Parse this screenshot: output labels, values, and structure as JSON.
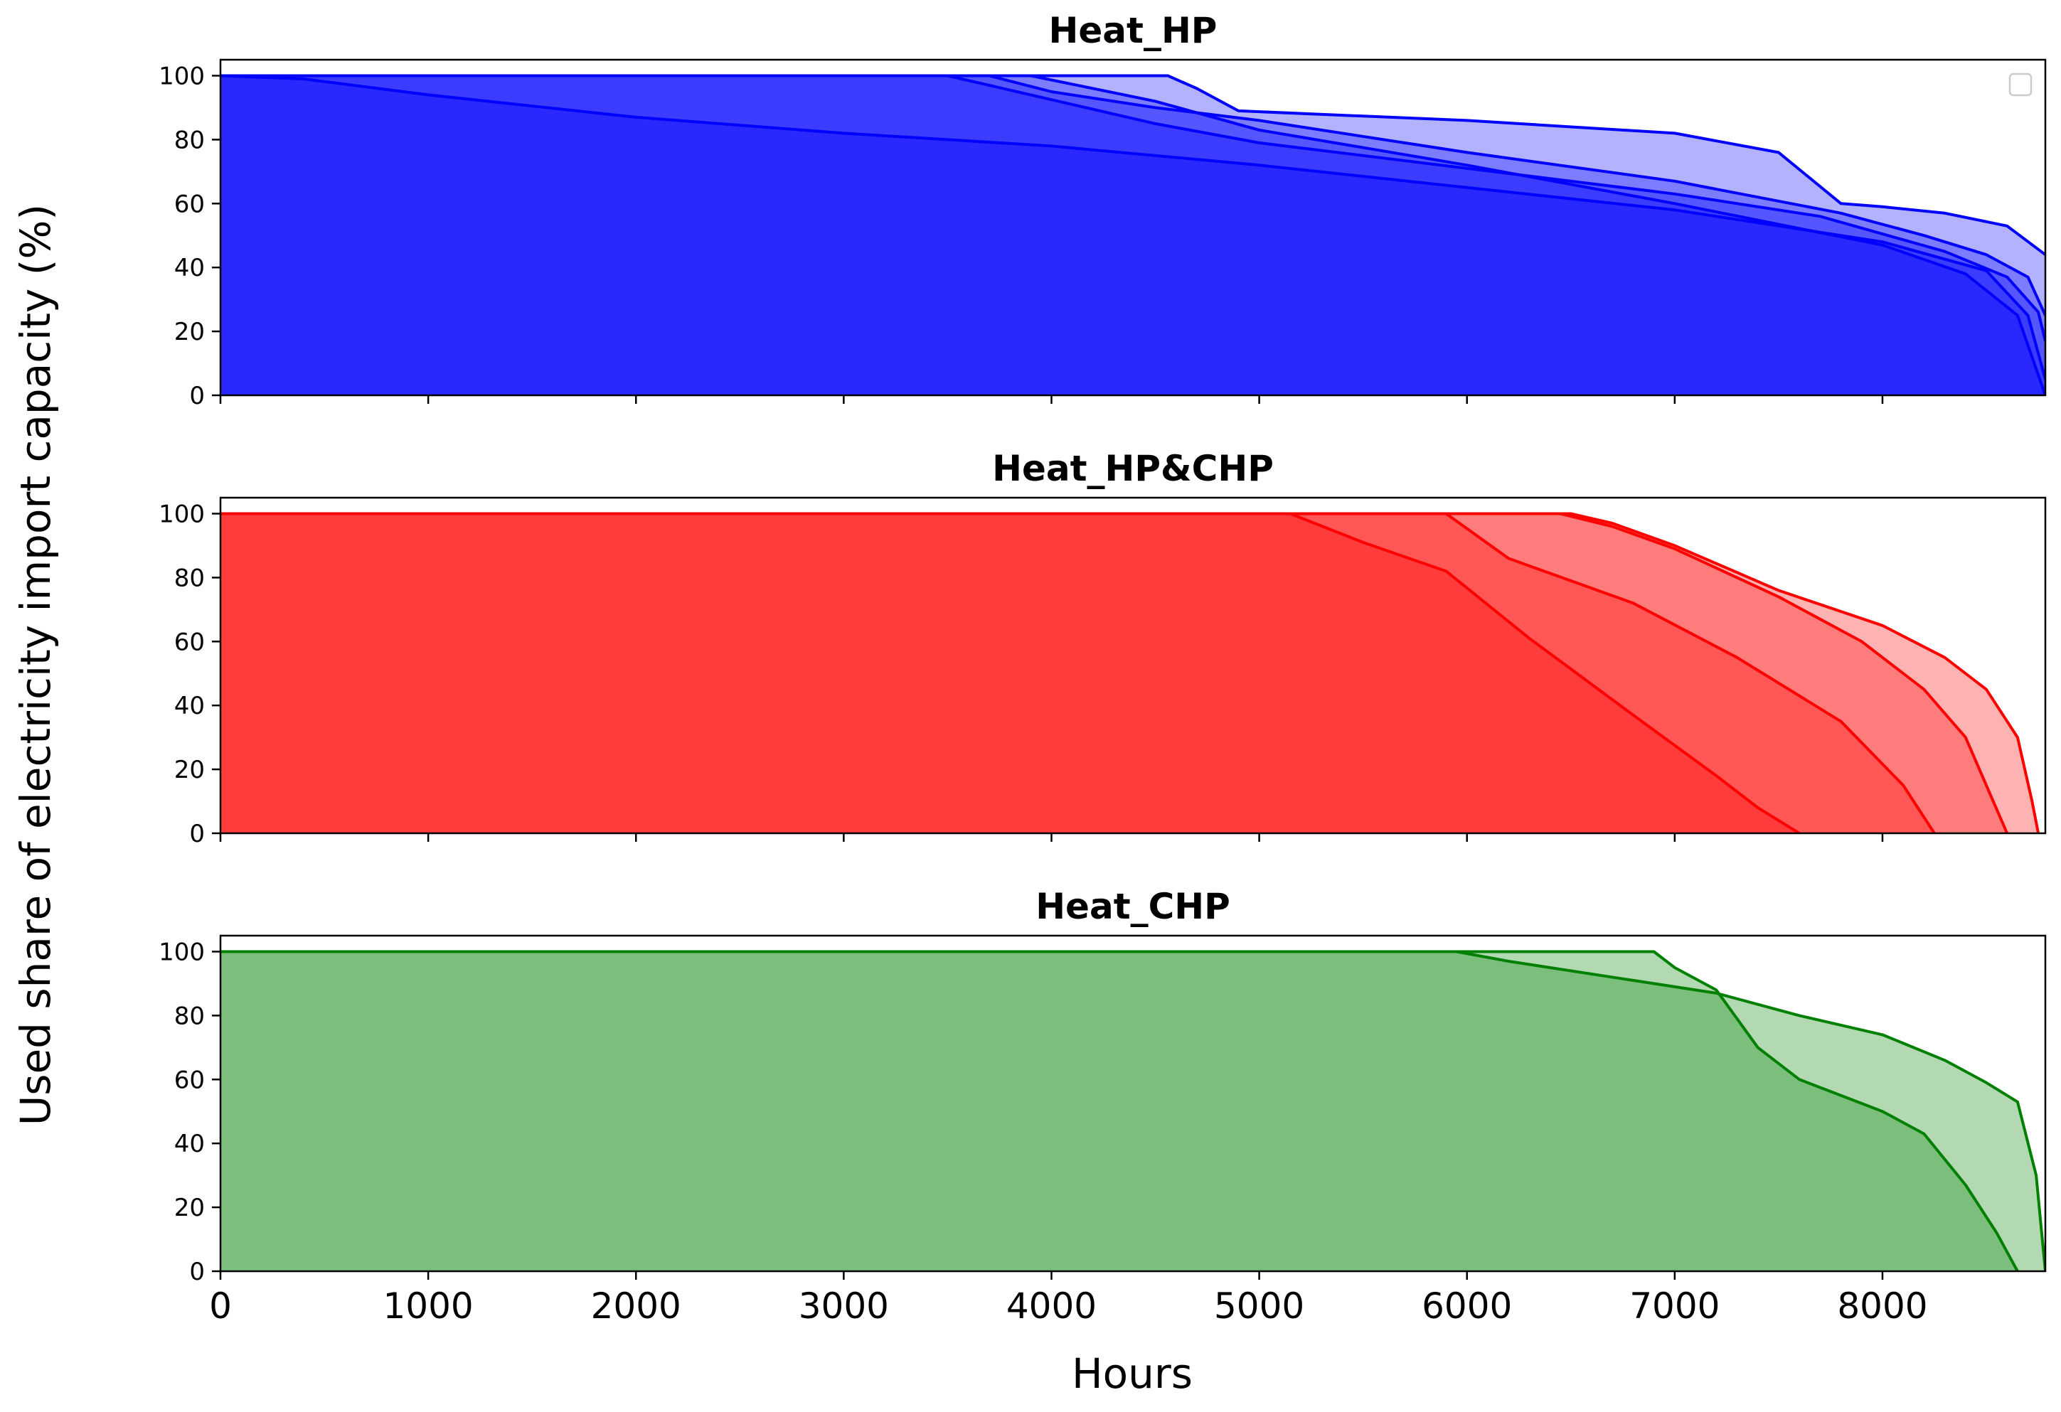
{
  "figure": {
    "ylabel": "Used share of electricity import capacity (%)",
    "xlabel": "Hours"
  },
  "chart_data": [
    {
      "type": "area",
      "title": "Heat_HP",
      "xlabel": "Hours",
      "ylabel": "Used share of electricity import capacity (%)",
      "xlim": [
        0,
        8784
      ],
      "ylim": [
        0,
        105
      ],
      "xticks": [
        0,
        1000,
        2000,
        3000,
        4000,
        5000,
        6000,
        7000,
        8000
      ],
      "yticks": [
        0,
        20,
        40,
        60,
        80,
        100
      ],
      "show_xtick_labels": false,
      "grid": false,
      "legend": "top-right (empty)",
      "color": "#0000ff",
      "fill_opacity": 0.3,
      "series": [
        {
          "x": [
            0,
            3800,
            4300,
            4560,
            4700,
            4900,
            6000,
            7000,
            7500,
            7800,
            8000,
            8300,
            8600,
            8784
          ],
          "y": [
            100,
            100,
            100,
            100,
            96,
            89,
            86,
            82,
            76,
            60,
            59,
            57,
            53,
            44
          ]
        },
        {
          "x": [
            0,
            3700,
            4000,
            4500,
            5000,
            6000,
            7000,
            7800,
            8200,
            8500,
            8700,
            8784
          ],
          "y": [
            100,
            100,
            95,
            90,
            86,
            76,
            67,
            57,
            50,
            44,
            37,
            25
          ]
        },
        {
          "x": [
            0,
            3500,
            3900,
            4500,
            5000,
            6000,
            7000,
            7700,
            8300,
            8600,
            8750,
            8784
          ],
          "y": [
            100,
            100,
            94,
            85,
            79,
            71,
            63,
            56,
            45,
            37,
            26,
            17
          ]
        },
        {
          "x": [
            0,
            400,
            1000,
            2000,
            3000,
            4000,
            5000,
            6000,
            7000,
            8000,
            8500,
            8700,
            8784
          ],
          "y": [
            100,
            99,
            94,
            87,
            82,
            78,
            72,
            65,
            58,
            48,
            39,
            25,
            5
          ]
        },
        {
          "x": [
            0,
            3000,
            3900,
            4500,
            5000,
            6000,
            7000,
            8000,
            8400,
            8650,
            8784
          ],
          "y": [
            100,
            100,
            100,
            92,
            83,
            72,
            60,
            47,
            38,
            25,
            0
          ]
        }
      ]
    },
    {
      "type": "area",
      "title": "Heat_HP&CHP",
      "xlim": [
        0,
        8784
      ],
      "ylim": [
        0,
        105
      ],
      "xticks": [
        0,
        1000,
        2000,
        3000,
        4000,
        5000,
        6000,
        7000,
        8000
      ],
      "yticks": [
        0,
        20,
        40,
        60,
        80,
        100
      ],
      "show_xtick_labels": false,
      "grid": false,
      "color": "#ff0000",
      "fill_opacity": 0.3,
      "series": [
        {
          "x": [
            0,
            6500,
            6700,
            7000,
            7500,
            8000,
            8300,
            8500,
            8650,
            8720,
            8750
          ],
          "y": [
            100,
            100,
            97,
            90,
            76,
            65,
            55,
            45,
            30,
            10,
            0
          ]
        },
        {
          "x": [
            0,
            6450,
            6700,
            7000,
            7500,
            7900,
            8200,
            8400,
            8500,
            8600
          ],
          "y": [
            100,
            100,
            96,
            89,
            74,
            60,
            45,
            30,
            15,
            0
          ]
        },
        {
          "x": [
            0,
            5900,
            6200,
            6800,
            7300,
            7800,
            8100,
            8250
          ],
          "y": [
            100,
            100,
            86,
            72,
            55,
            35,
            15,
            0
          ]
        },
        {
          "x": [
            0,
            5150,
            5500,
            5900,
            6300,
            6800,
            7200,
            7400,
            7600
          ],
          "y": [
            100,
            100,
            91,
            82,
            61,
            37,
            18,
            8,
            0
          ]
        }
      ]
    },
    {
      "type": "area",
      "title": "Heat_CHP",
      "xlim": [
        0,
        8784
      ],
      "ylim": [
        0,
        105
      ],
      "xticks": [
        0,
        1000,
        2000,
        3000,
        4000,
        5000,
        6000,
        7000,
        8000
      ],
      "xtick_labels": [
        "0",
        "1000",
        "2000",
        "3000",
        "4000",
        "5000",
        "6000",
        "7000",
        "8000"
      ],
      "yticks": [
        0,
        20,
        40,
        60,
        80,
        100
      ],
      "show_xtick_labels": true,
      "grid": false,
      "color": "#008000",
      "fill_opacity": 0.3,
      "series": [
        {
          "x": [
            0,
            5950,
            6200,
            6900,
            7200,
            7600,
            8000,
            8300,
            8500,
            8650,
            8740,
            8784
          ],
          "y": [
            100,
            100,
            97,
            90,
            87,
            80,
            74,
            66,
            59,
            53,
            30,
            0
          ]
        },
        {
          "x": [
            0,
            6900,
            7000,
            7200,
            7400,
            7600,
            8000,
            8200,
            8400,
            8550,
            8650
          ],
          "y": [
            100,
            100,
            95,
            88,
            70,
            60,
            50,
            43,
            27,
            12,
            0
          ]
        }
      ]
    }
  ]
}
